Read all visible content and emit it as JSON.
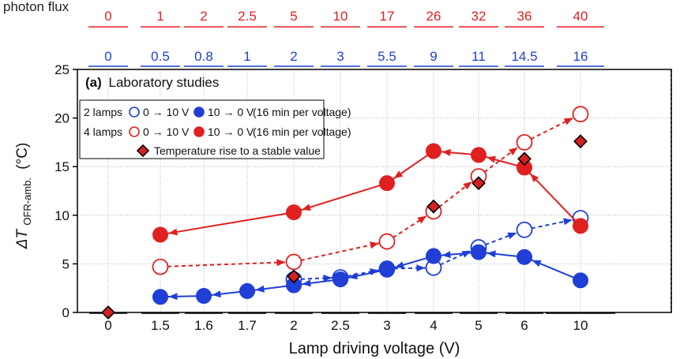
{
  "chart_data": {
    "type": "line",
    "header_text": "photon flux",
    "panel_label": "(a)",
    "panel_title": "Laboratory studies",
    "xlabel": "Lamp driving voltage (V)",
    "ylabel_main": "ΔT",
    "ylabel_sub": "OFR-amb.",
    "ylabel_unit": "(°C)",
    "categories": [
      "0",
      "1.5",
      "1.6",
      "1.7",
      "2",
      "2.5",
      "3",
      "4",
      "5",
      "6",
      "10"
    ],
    "ylim": [
      0,
      25
    ],
    "yticks": [
      "0",
      "5",
      "10",
      "15",
      "20",
      "25"
    ],
    "top_axis_red": [
      "0",
      "1",
      "2",
      "2.5",
      "5",
      "10",
      "17",
      "26",
      "32",
      "36",
      "40"
    ],
    "top_axis_blue": [
      "0",
      "0.5",
      "0.8",
      "1",
      "2",
      "3",
      "5.5",
      "9",
      "11",
      "14.5",
      "16"
    ],
    "grid": true,
    "legend_position": "top-left",
    "legend": {
      "row1_group": "2 lamps",
      "row1_a": "0 → 10 V",
      "row1_b": "10 → 0 V",
      "row1_note": "(16 min per voltage)",
      "row2_group": "4 lamps",
      "row2_a": "0 → 10 V",
      "row2_b": "10 → 0 V",
      "row2_note": "(16 min per voltage)",
      "row3": "Temperature rise to a stable value"
    },
    "series": [
      {
        "key": "2 lamps 0 → 10 V",
        "color": "#1f3fd6",
        "style": "open-dashed",
        "points": [
          [
            "2",
            3.4
          ],
          [
            "2.5",
            3.6
          ],
          [
            "3",
            4.5
          ],
          [
            "4",
            4.6
          ],
          [
            "5",
            6.7
          ],
          [
            "6",
            8.5
          ],
          [
            "10",
            9.7
          ]
        ]
      },
      {
        "key": "2 lamps 10 → 0 V",
        "color": "#1f3fd6",
        "style": "filled-solid",
        "points": [
          [
            "10",
            3.3
          ],
          [
            "6",
            5.7
          ],
          [
            "5",
            6.2
          ],
          [
            "4",
            5.8
          ],
          [
            "3",
            4.4
          ],
          [
            "2.5",
            3.4
          ],
          [
            "2",
            2.8
          ],
          [
            "1.7",
            2.2
          ],
          [
            "1.6",
            1.7
          ],
          [
            "1.5",
            1.6
          ]
        ]
      },
      {
        "key": "4 lamps 0 → 10 V",
        "color": "#e02020",
        "style": "open-dashed",
        "points": [
          [
            "1.5",
            4.7
          ],
          [
            "2",
            5.2
          ],
          [
            "3",
            7.3
          ],
          [
            "4",
            10.4
          ],
          [
            "5",
            14.0
          ],
          [
            "6",
            17.5
          ],
          [
            "10",
            20.4
          ]
        ]
      },
      {
        "key": "4 lamps 10 → 0 V",
        "color": "#e02020",
        "style": "filled-solid",
        "points": [
          [
            "10",
            8.9
          ],
          [
            "6",
            14.9
          ],
          [
            "5",
            16.2
          ],
          [
            "4",
            16.6
          ],
          [
            "3",
            13.3
          ],
          [
            "2",
            10.3
          ],
          [
            "1.5",
            8.0
          ]
        ]
      },
      {
        "key": "Temperature rise to a stable value",
        "color": "#d42020",
        "style": "diamond",
        "points": [
          [
            "0",
            0.0
          ],
          [
            "2",
            3.7
          ],
          [
            "4",
            10.9
          ],
          [
            "5",
            13.3
          ],
          [
            "6",
            15.8
          ],
          [
            "10",
            17.6
          ]
        ]
      }
    ]
  }
}
